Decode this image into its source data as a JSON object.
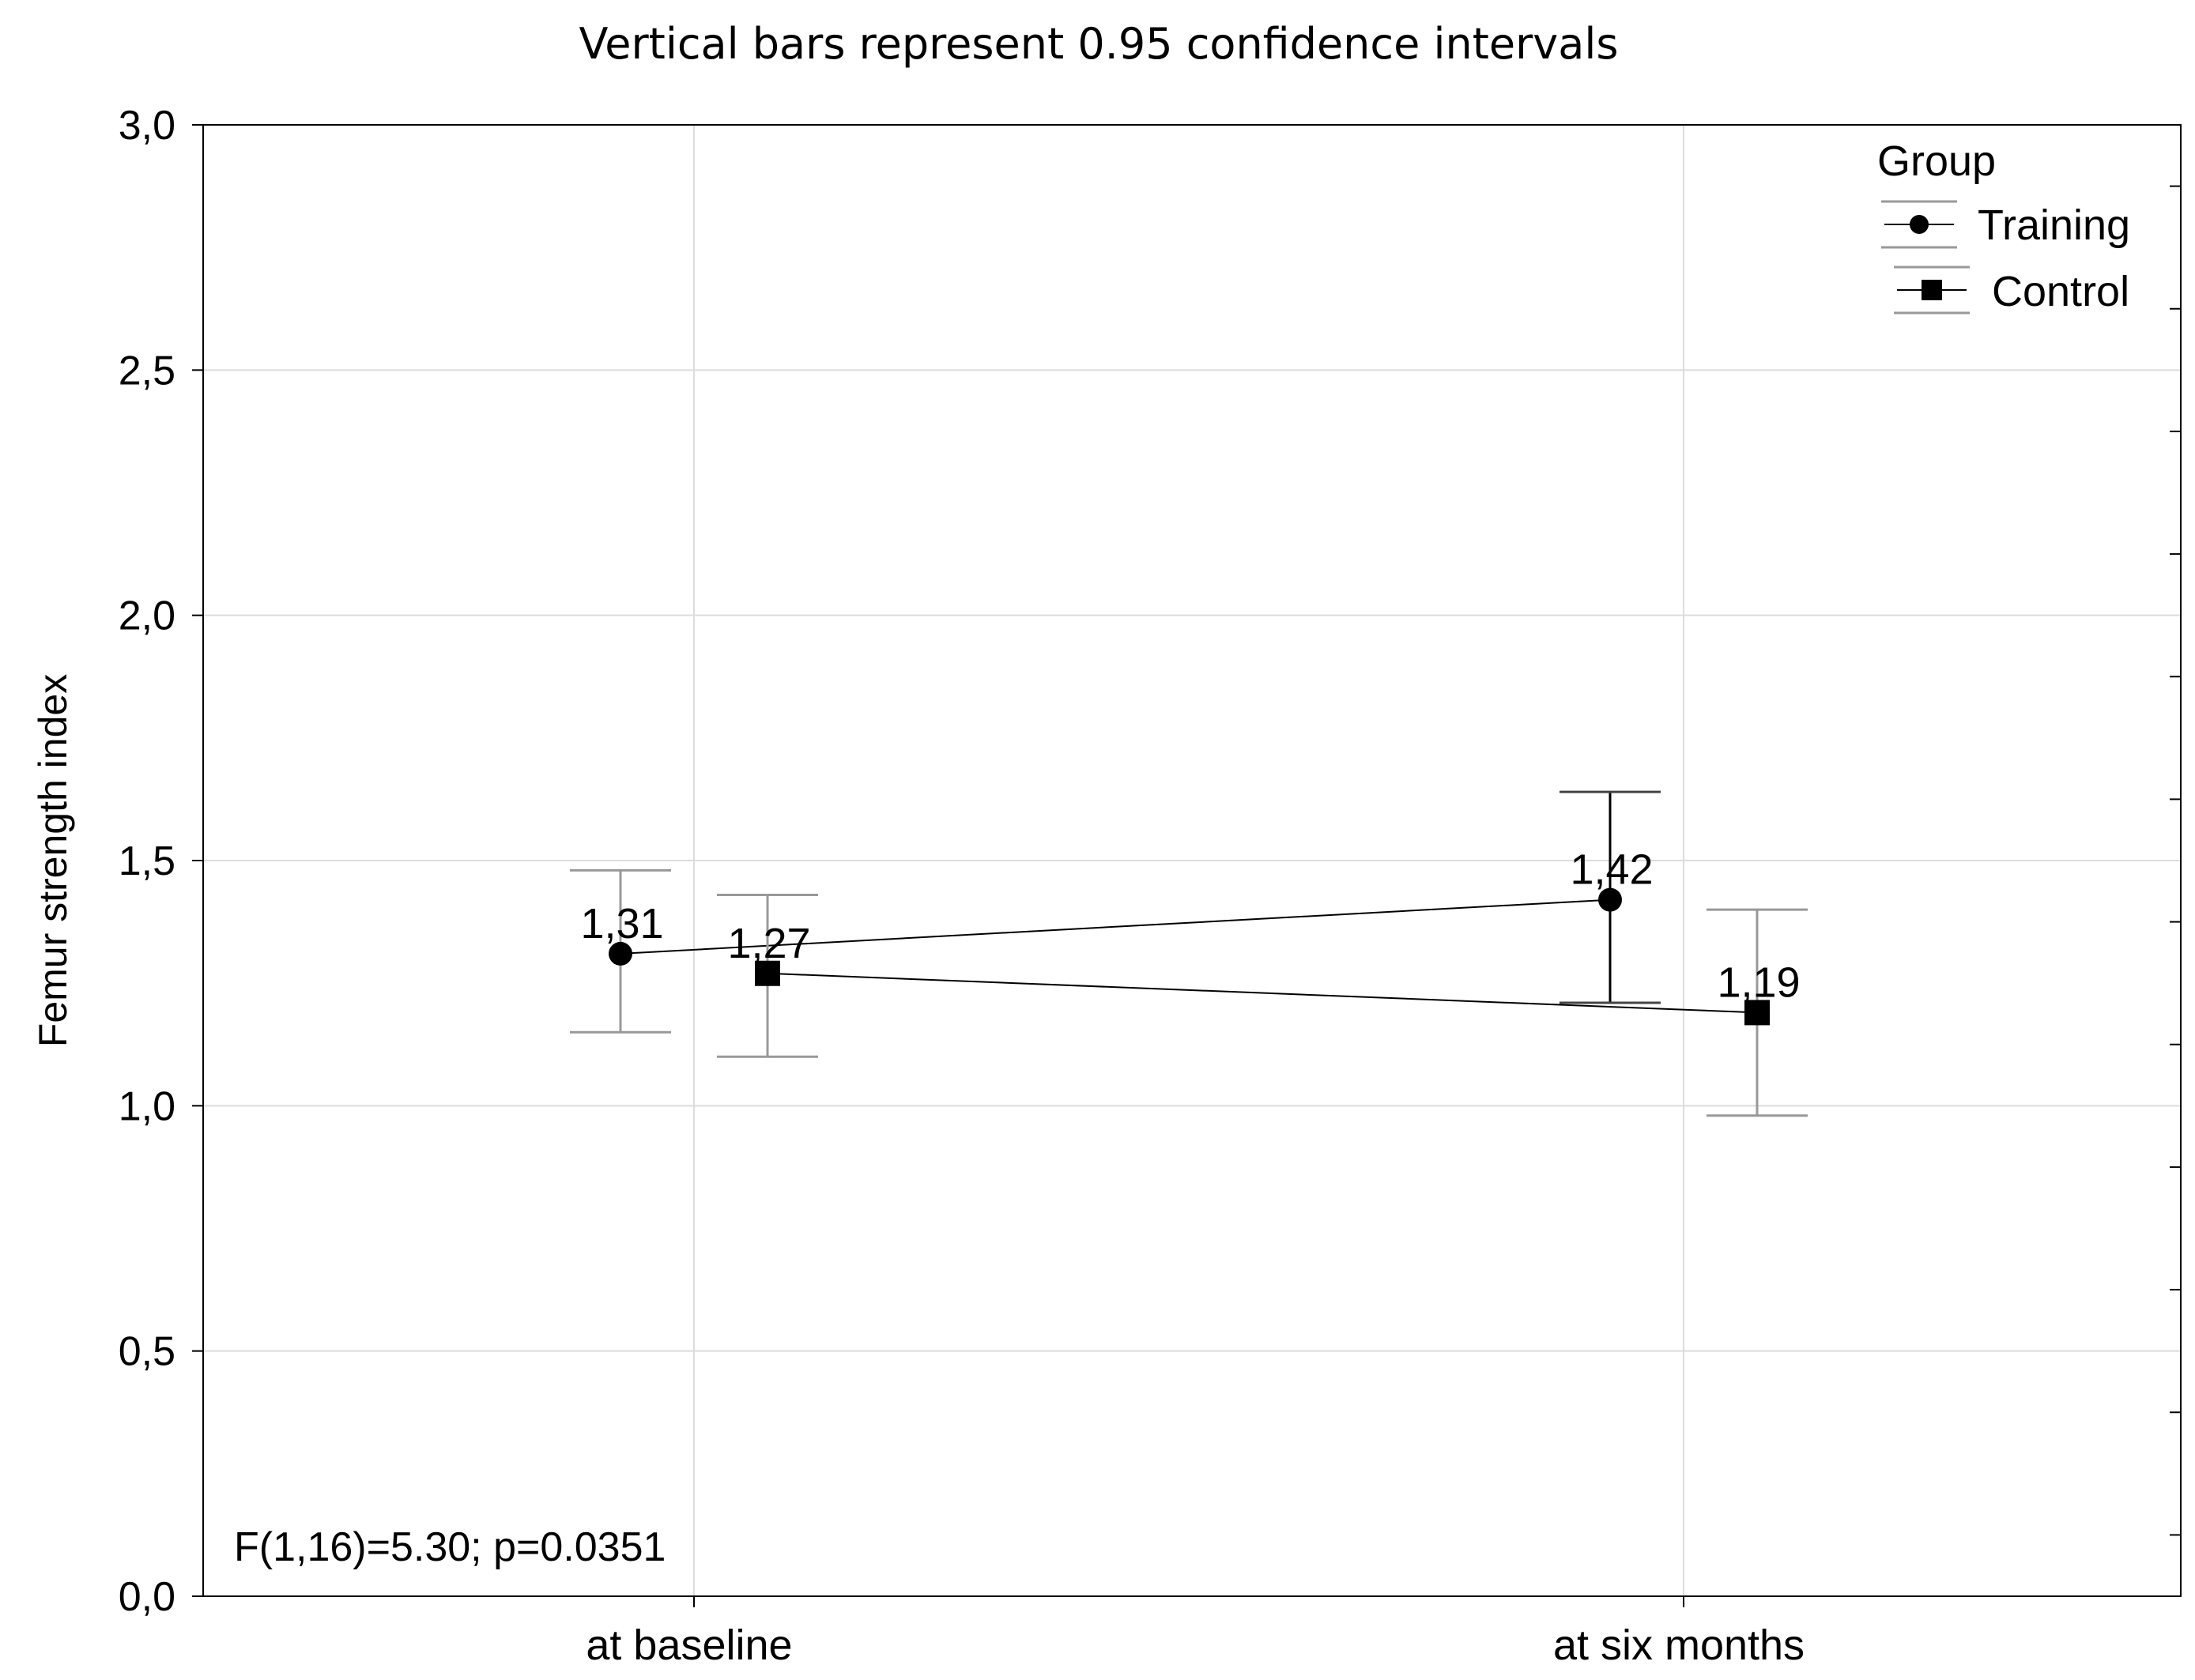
{
  "chart_data": {
    "type": "line",
    "title": "Vertical bars represent 0.95 confidence intervals",
    "xlabel": "",
    "ylabel": "Femur strength index",
    "categories": [
      "at baseline",
      "at six months"
    ],
    "ylim": [
      0,
      3
    ],
    "yticks": [
      0,
      0.5,
      1,
      1.5,
      2,
      2.5,
      3
    ],
    "ytick_labels": [
      "0,0",
      "0,5",
      "1,0",
      "1,5",
      "2,0",
      "2,5",
      "3,0"
    ],
    "grid": true,
    "legend": {
      "title": "Group",
      "position": "top-right"
    },
    "series": [
      {
        "name": "Training",
        "marker": "circle",
        "values": [
          1.31,
          1.42
        ],
        "value_labels": [
          "1,31",
          "1,42"
        ],
        "ci_lower": [
          1.15,
          1.21
        ],
        "ci_upper": [
          1.48,
          1.64
        ],
        "error_bar_color": "#999999",
        "color": "#000000"
      },
      {
        "name": "Control",
        "marker": "square",
        "values": [
          1.27,
          1.19
        ],
        "value_labels": [
          "1,27",
          "1,19"
        ],
        "ci_lower": [
          1.1,
          0.98
        ],
        "ci_upper": [
          1.43,
          1.4
        ],
        "error_bar_color": "#999999",
        "color": "#000000"
      }
    ],
    "annotation": "F(1,16)=5.30; p=0.0351"
  }
}
